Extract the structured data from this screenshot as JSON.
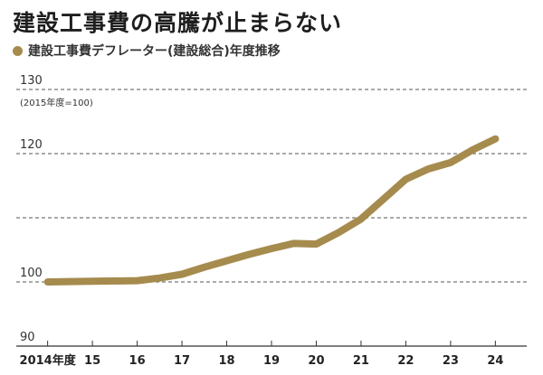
{
  "chart_data": {
    "type": "line",
    "title": "建設工事費の高騰が止まらない",
    "note": "(2015年度=100)",
    "categories": [
      "2014年度",
      "15",
      "16",
      "17",
      "18",
      "19",
      "20",
      "21",
      "22",
      "23",
      "24"
    ],
    "series": [
      {
        "name": "建設工事費デフレーター(建設総合)年度推移",
        "x": [
          2014,
          2015,
          2016,
          2016.5,
          2017,
          2017.5,
          2018,
          2018.5,
          2019,
          2019.5,
          2020,
          2020.5,
          2021,
          2021.5,
          2022,
          2022.5,
          2023,
          2023.5,
          2024
        ],
        "values": [
          100,
          100.1,
          100.2,
          100.6,
          101.2,
          102.3,
          103.3,
          104.3,
          105.2,
          106.0,
          105.9,
          107.7,
          109.8,
          112.9,
          116.0,
          117.6,
          118.6,
          120.6,
          122.3
        ]
      }
    ],
    "yticks": [
      90,
      100,
      120,
      130
    ],
    "gridlines": [
      100,
      110,
      120,
      130
    ],
    "ylim": [
      90,
      130
    ],
    "xlim": [
      2013.3,
      2024.7
    ],
    "grid": true,
    "colors": {
      "line": "#a68b4e",
      "grid": "#555555",
      "axis": "#333333"
    }
  }
}
